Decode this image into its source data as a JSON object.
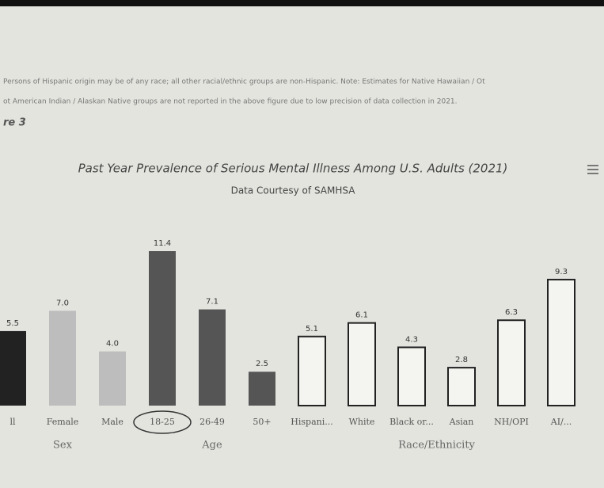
{
  "chart_data": {
    "type": "bar",
    "figure_label": "re 3",
    "notes": [
      "Persons of Hispanic origin may be of any race; all other racial/ethnic groups are non-Hispanic. Note: Estimates for Native Hawaiian / Ot",
      "ot American Indian / Alaskan Native groups are not reported in the above figure due to low precision of data collection in 2021."
    ],
    "title": "Past Year Prevalence of Serious Mental Illness Among U.S. Adults (2021)",
    "subtitle": "Data Courtesy of SAMHSA",
    "categories": [
      "ll",
      "Female",
      "Male",
      "18-25",
      "26-49",
      "50+",
      "Hispani...",
      "White",
      "Black or...",
      "Asian",
      "NH/OPI",
      "AI/..."
    ],
    "values": [
      5.5,
      7.0,
      4.0,
      11.4,
      7.1,
      2.5,
      5.1,
      6.1,
      4.3,
      2.8,
      6.3,
      9.3
    ],
    "value_labels": [
      "5.5",
      "7.0",
      "4.0",
      "11.4",
      "7.1",
      "2.5",
      "5.1",
      "6.1",
      "4.3",
      "2.8",
      "6.3",
      "9.3"
    ],
    "colors": [
      "#222222",
      "#bdbdbd",
      "#bdbdbd",
      "#555555",
      "#555555",
      "#555555",
      "#f4f4f0",
      "#f4f4f0",
      "#f4f4f0",
      "#f4f4f0",
      "#f4f4f0",
      "#f4f4f0"
    ],
    "groups": [
      {
        "name": "Sex",
        "categories": [
          0,
          2
        ]
      },
      {
        "name": "Age",
        "categories": [
          3,
          5
        ]
      },
      {
        "name": "Race/Ethnicity",
        "categories": [
          6,
          11
        ]
      }
    ]
  }
}
